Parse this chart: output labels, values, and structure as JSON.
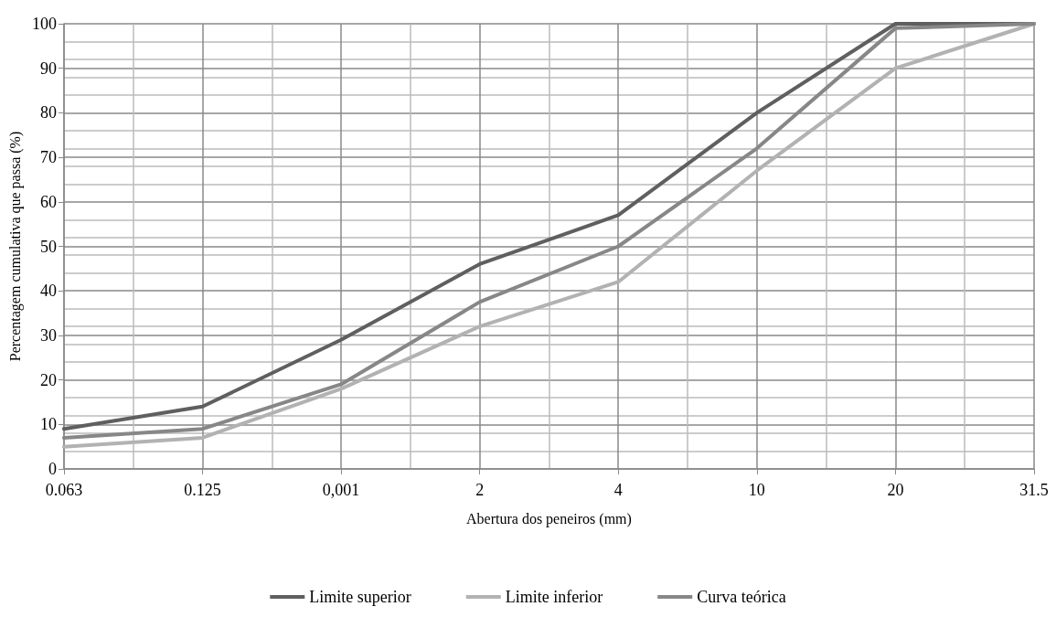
{
  "chart_data": {
    "type": "line",
    "xlabel": "Abertura dos peneiros (mm)",
    "ylabel": "Percentagem cumulativa que passa (%)",
    "categories": [
      "0.063",
      "0.125",
      "0,001",
      "2",
      "4",
      "10",
      "20",
      "31.5"
    ],
    "series": [
      {
        "name": "Limite superior",
        "color": "#5f5f5f",
        "values": [
          9,
          14,
          29,
          46,
          57,
          80,
          100,
          100
        ]
      },
      {
        "name": "Limite inferior",
        "color": "#b2b2b2",
        "values": [
          5,
          7,
          18,
          32,
          42,
          67,
          90,
          100
        ]
      },
      {
        "name": "Curva teórica",
        "color": "#878787",
        "values": [
          7,
          9,
          19,
          37.5,
          50,
          72,
          99,
          100
        ]
      }
    ],
    "ylim": [
      0,
      100
    ],
    "yticks": [
      0,
      10,
      20,
      30,
      40,
      50,
      60,
      70,
      80,
      90,
      100
    ],
    "grid": true,
    "legend": "bottom",
    "marker": "none",
    "line_style": "solid"
  }
}
